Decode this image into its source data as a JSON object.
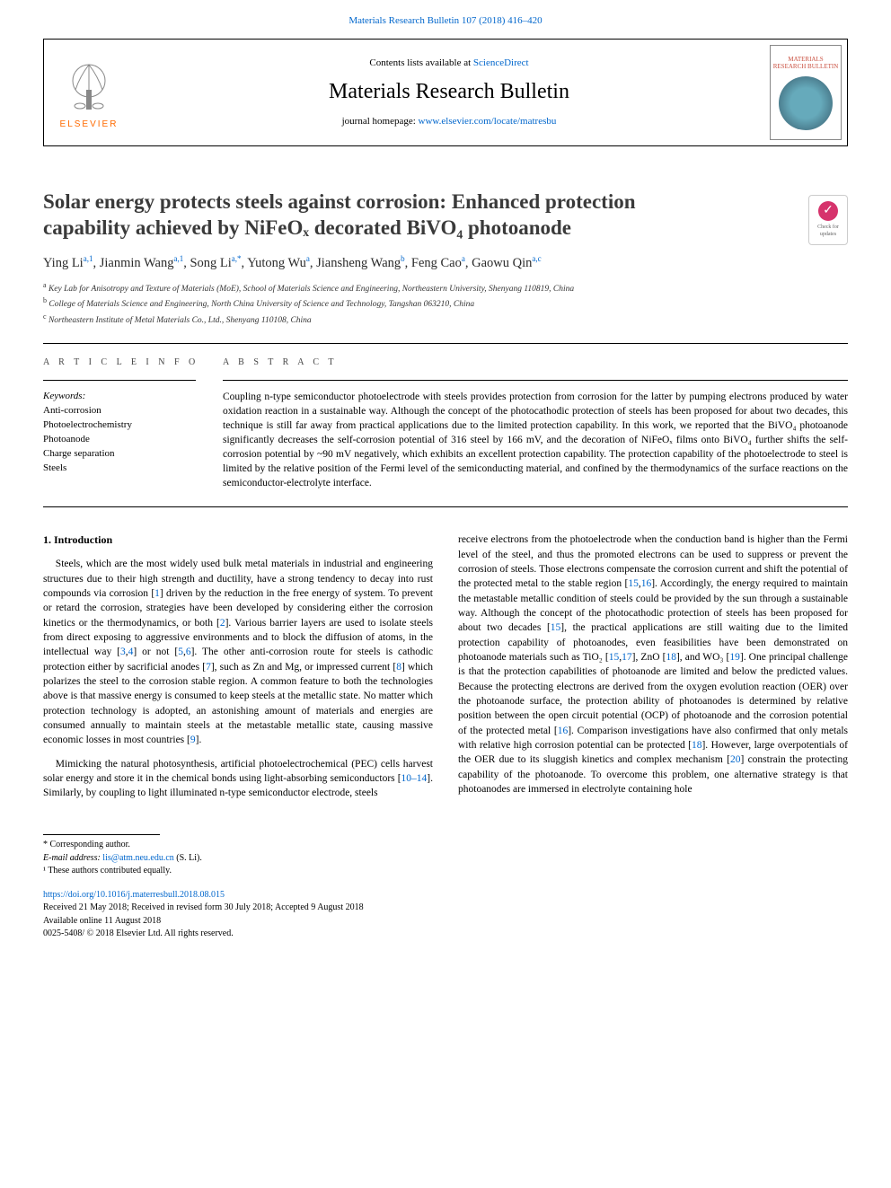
{
  "header": {
    "top_citation": "Materials Research Bulletin 107 (2018) 416–420",
    "contents_prefix": "Contents lists available at ",
    "contents_link": "ScienceDirect",
    "journal_name": "Materials Research Bulletin",
    "homepage_prefix": "journal homepage: ",
    "homepage_link": "www.elsevier.com/locate/matresbu",
    "elsevier_label": "ELSEVIER",
    "cover_label": "MATERIALS RESEARCH BULLETIN"
  },
  "check_badge": {
    "line1": "Check for",
    "line2": "updates"
  },
  "article": {
    "title_line1": "Solar energy protects steels against corrosion: Enhanced protection",
    "title_line2": "capability achieved by NiFeOₓ decorated BiVO₄ photoanode",
    "authors_html": "Ying Li<sup>a,1</sup>, Jianmin Wang<sup>a,1</sup>, Song Li<sup>a,*</sup>, Yutong Wu<sup>a</sup>, Jiansheng Wang<sup>b</sup>, Feng Cao<sup>a</sup>, Gaowu Qin<sup>a,c</sup>",
    "affiliations": [
      "a Key Lab for Anisotropy and Texture of Materials (MoE), School of Materials Science and Engineering, Northeastern University, Shenyang 110819, China",
      "b College of Materials Science and Engineering, North China University of Science and Technology, Tangshan 063210, China",
      "c Northeastern Institute of Metal Materials Co., Ltd., Shenyang 110108, China"
    ]
  },
  "info": {
    "article_info_label": "A R T I C L E  I N F O",
    "keywords_label": "Keywords:",
    "keywords": [
      "Anti-corrosion",
      "Photoelectrochemistry",
      "Photoanode",
      "Charge separation",
      "Steels"
    ]
  },
  "abstract": {
    "label": "A B S T R A C T",
    "text": "Coupling n-type semiconductor photoelectrode with steels provides protection from corrosion for the latter by pumping electrons produced by water oxidation reaction in a sustainable way. Although the concept of the photocathodic protection of steels has been proposed for about two decades, this technique is still far away from practical applications due to the limited protection capability. In this work, we reported that the BiVO₄ photoanode significantly decreases the self-corrosion potential of 316 steel by 166 mV, and the decoration of NiFeOₓ films onto BiVO₄ further shifts the self-corrosion potential by ~90 mV negatively, which exhibits an excellent protection capability. The protection capability of the photoelectrode to steel is limited by the relative position of the Fermi level of the semiconducting material, and confined by the thermodynamics of the surface reactions on the semiconductor-electrolyte interface."
  },
  "body": {
    "heading": "1. Introduction",
    "p1": "Steels, which are the most widely used bulk metal materials in industrial and engineering structures due to their high strength and ductility, have a strong tendency to decay into rust compounds via corrosion [<span class='ref'>1</span>] driven by the reduction in the free energy of system. To prevent or retard the corrosion, strategies have been developed by considering either the corrosion kinetics or the thermodynamics, or both [<span class='ref'>2</span>]. Various barrier layers are used to isolate steels from direct exposing to aggressive environments and to block the diffusion of atoms, in the intellectual way [<span class='ref'>3</span>,<span class='ref'>4</span>] or not [<span class='ref'>5</span>,<span class='ref'>6</span>]. The other anti-corrosion route for steels is cathodic protection either by sacrificial anodes [<span class='ref'>7</span>], such as Zn and Mg, or impressed current [<span class='ref'>8</span>] which polarizes the steel to the corrosion stable region. A common feature to both the technologies above is that massive energy is consumed to keep steels at the metallic state. No matter which protection technology is adopted, an astonishing amount of materials and energies are consumed annually to maintain steels at the metastable metallic state, causing massive economic losses in most countries [<span class='ref'>9</span>].",
    "p2": "Mimicking the natural photosynthesis, artificial photoelectrochemical (PEC) cells harvest solar energy and store it in the chemical bonds using light-absorbing semiconductors [<span class='ref'>10–14</span>]. Similarly, by coupling to light illuminated n-type semiconductor electrode, steels",
    "p3": "receive electrons from the photoelectrode when the conduction band is higher than the Fermi level of the steel, and thus the promoted electrons can be used to suppress or prevent the corrosion of steels. Those electrons compensate the corrosion current and shift the potential of the protected metal to the stable region [<span class='ref'>15</span>,<span class='ref'>16</span>]. Accordingly, the energy required to maintain the metastable metallic condition of steels could be provided by the sun through a sustainable way. Although the concept of the photocathodic protection of steels has been proposed for about two decades [<span class='ref'>15</span>], the practical applications are still waiting due to the limited protection capability of photoanodes, even feasibilities have been demonstrated on photoanode materials such as TiO₂ [<span class='ref'>15</span>,<span class='ref'>17</span>], ZnO [<span class='ref'>18</span>], and WO₃ [<span class='ref'>19</span>]. One principal challenge is that the protection capabilities of photoanode are limited and below the predicted values. Because the protecting electrons are derived from the oxygen evolution reaction (OER) over the photoanode surface, the protection ability of photoanodes is determined by relative position between the open circuit potential (OCP) of photoanode and the corrosion potential of the protected metal [<span class='ref'>16</span>]. Comparison investigations have also confirmed that only metals with relative high corrosion potential can be protected [<span class='ref'>18</span>]. However, large overpotentials of the OER due to its sluggish kinetics and complex mechanism [<span class='ref'>20</span>] constrain the protecting capability of the photoanode. To overcome this problem, one alternative strategy is that photoanodes are immersed in electrolyte containing hole"
  },
  "footnotes": {
    "corresponding": "* Corresponding author.",
    "email_label": "E-mail address: ",
    "email": "lis@atm.neu.edu.cn",
    "email_suffix": " (S. Li).",
    "equal": "¹ These authors contributed equally."
  },
  "doi": {
    "link": "https://doi.org/10.1016/j.materresbull.2018.08.015",
    "received": "Received 21 May 2018; Received in revised form 30 July 2018; Accepted 9 August 2018",
    "online": "Available online 11 August 2018",
    "copyright": "0025-5408/ © 2018 Elsevier Ltd. All rights reserved."
  },
  "colors": {
    "link": "#0066cc",
    "elsevier_orange": "#ff6a00",
    "badge_pink": "#d6336c",
    "text": "#000000"
  }
}
